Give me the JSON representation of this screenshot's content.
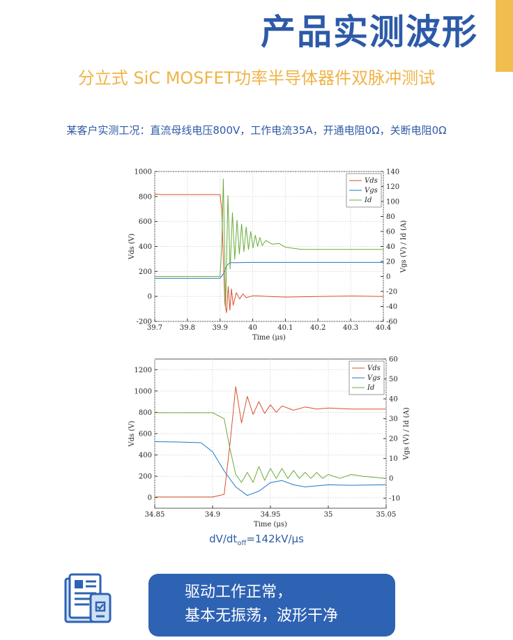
{
  "header": {
    "title": "产品实测波形",
    "subtitle": "分立式 SiC MOSFET功率半导体器件双脉冲测试",
    "conditions": "某客户实测工况：直流母线电压800V，工作电流35A，开通电阻0Ω，关断电阻0Ω"
  },
  "formula": {
    "pre": "dV/dt",
    "sub": "off",
    "post": "=142kV/μs"
  },
  "callout": {
    "line1": "驱动工作正常，",
    "line2": "基本无振荡，波形干净"
  },
  "icons": {
    "document": "document-chip-icon"
  },
  "colors": {
    "accent": "#f0bd4e",
    "title": "#2d5aa8",
    "subtitle": "#f0b346",
    "pill": "#2e62b3",
    "vds": "#d9502c",
    "vgs": "#1f77c4",
    "id": "#6aab3a"
  },
  "chart_data": [
    {
      "type": "line",
      "xlabel": "Time (μs)",
      "ylabel_left": "Vds (V)",
      "ylabel_right": "Vgs (V) / Id (A)",
      "xlim": [
        39.7,
        40.4
      ],
      "ylim_left": [
        -200,
        1000
      ],
      "ylim_right": [
        -60,
        140
      ],
      "xticks": [
        "39.7",
        "39.8",
        "39.9",
        "40",
        "40.1",
        "40.2",
        "40.3",
        "40.4"
      ],
      "yticks_left": [
        "-200",
        "0",
        "200",
        "400",
        "600",
        "800",
        "1000"
      ],
      "yticks_right": [
        "-60",
        "-40",
        "-20",
        "0",
        "20",
        "40",
        "60",
        "80",
        "100",
        "120",
        "140"
      ],
      "grid": true,
      "legend": "top-right",
      "series": [
        {
          "name": "Vds",
          "axis": "left",
          "x": [
            39.7,
            39.72,
            39.9,
            39.905,
            39.91,
            39.915,
            39.92,
            39.925,
            39.93,
            39.935,
            39.94,
            39.95,
            39.96,
            39.97,
            39.98,
            40.0,
            40.05,
            40.1,
            40.2,
            40.3,
            40.4
          ],
          "values": [
            820,
            815,
            815,
            700,
            300,
            -60,
            -130,
            80,
            -110,
            60,
            -70,
            30,
            -20,
            20,
            -10,
            5,
            0,
            -5,
            0,
            3,
            0
          ]
        },
        {
          "name": "Vgs",
          "axis": "left",
          "x": [
            39.7,
            39.9,
            39.91,
            39.92,
            39.93,
            39.95,
            40.0,
            40.1,
            40.2,
            40.4
          ],
          "values": [
            145,
            145,
            180,
            245,
            270,
            270,
            272,
            272,
            272,
            272
          ]
        },
        {
          "name": "Id",
          "axis": "right",
          "x": [
            39.7,
            39.9,
            39.905,
            39.91,
            39.917,
            39.924,
            39.931,
            39.938,
            39.945,
            39.952,
            39.959,
            39.966,
            39.973,
            39.98,
            39.987,
            39.994,
            40.001,
            40.008,
            40.015,
            40.022,
            40.029,
            40.04,
            40.06,
            40.08,
            40.1,
            40.15,
            40.2,
            40.3,
            40.4
          ],
          "values": [
            0,
            0,
            40,
            130,
            -40,
            108,
            10,
            85,
            23,
            75,
            30,
            70,
            33,
            66,
            36,
            60,
            38,
            55,
            40,
            52,
            41,
            48,
            43,
            44,
            39,
            36,
            36,
            36,
            36
          ]
        }
      ]
    },
    {
      "type": "line",
      "xlabel": "Time (μs)",
      "ylabel_left": "Vds (V)",
      "ylabel_right": "Vgs (V) / Id (A)",
      "xlim": [
        34.85,
        35.05
      ],
      "ylim_left": [
        -100,
        1300
      ],
      "ylim_right": [
        -15,
        60
      ],
      "xticks": [
        "34.85",
        "34.9",
        "34.95",
        "35",
        "35.05"
      ],
      "yticks_left": [
        "0",
        "200",
        "400",
        "600",
        "800",
        "1000",
        "1200"
      ],
      "yticks_right": [
        "-10",
        "0",
        "10",
        "20",
        "30",
        "40",
        "50",
        "60"
      ],
      "grid": true,
      "legend": "top-right",
      "series": [
        {
          "name": "Vds",
          "axis": "left",
          "x": [
            34.85,
            34.9,
            34.91,
            34.915,
            34.92,
            34.925,
            34.93,
            34.935,
            34.94,
            34.945,
            34.95,
            34.955,
            34.96,
            34.97,
            34.98,
            34.99,
            35.0,
            35.02,
            35.05
          ],
          "values": [
            5,
            5,
            30,
            500,
            1040,
            700,
            950,
            780,
            900,
            790,
            870,
            800,
            860,
            820,
            850,
            830,
            840,
            830,
            830
          ]
        },
        {
          "name": "Vgs",
          "axis": "left",
          "x": [
            34.85,
            34.875,
            34.89,
            34.9,
            34.91,
            34.92,
            34.93,
            34.94,
            34.95,
            34.96,
            34.97,
            34.98,
            34.99,
            35.0,
            35.02,
            35.05
          ],
          "values": [
            525,
            520,
            515,
            430,
            250,
            100,
            20,
            60,
            140,
            160,
            120,
            100,
            110,
            120,
            115,
            120
          ]
        },
        {
          "name": "Id",
          "axis": "right",
          "x": [
            34.85,
            34.9,
            34.91,
            34.915,
            34.92,
            34.925,
            34.93,
            34.935,
            34.94,
            34.945,
            34.95,
            34.955,
            34.96,
            34.965,
            34.97,
            34.975,
            34.98,
            34.985,
            34.99,
            34.995,
            35.0,
            35.01,
            35.02,
            35.03,
            35.05
          ],
          "values": [
            33,
            33,
            30,
            15,
            2,
            -2,
            3,
            -2,
            6,
            -1,
            5,
            0,
            5,
            0,
            4,
            0,
            3,
            0,
            3,
            0,
            2,
            0,
            2,
            1,
            0
          ]
        }
      ]
    }
  ]
}
